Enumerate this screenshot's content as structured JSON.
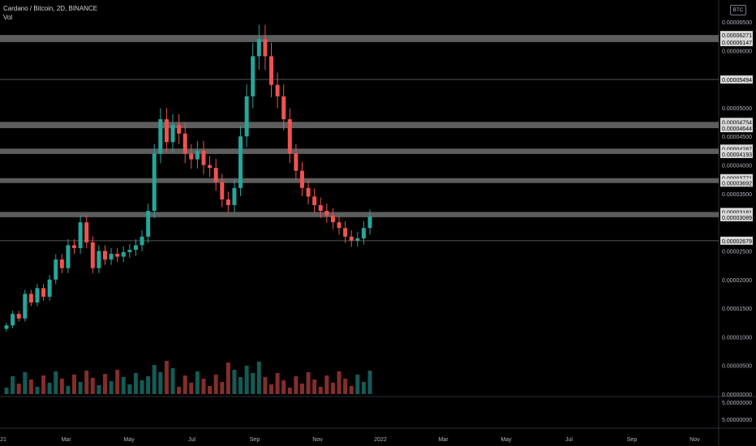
{
  "header": {
    "symbol": "Cardano / Bitcoin, 2D, BINANCE",
    "volume_label": "Vol",
    "currency_badge": "BTC"
  },
  "colors": {
    "background": "#000000",
    "up": "#26a69a",
    "down": "#ef5350",
    "zone": "#6d6d6d",
    "axis_text": "#b2b5be",
    "label_bg": "#d9d9d9"
  },
  "chart_data": {
    "type": "candlestick",
    "price_axis": {
      "ticks": [
        "0.00006500",
        "0.00006000",
        "0.00005000",
        "0.00004500",
        "0.00004000",
        "0.00003500",
        "0.00002500",
        "0.00002000",
        "0.00001500",
        "0.00001000",
        "0.00000500",
        "0.00000000"
      ],
      "range": [
        0,
        6.5e-05
      ]
    },
    "volume_axis_ticks": [
      "5.00000000",
      "5.00000000"
    ],
    "x_axis_ticks": [
      "21",
      "Mar",
      "May",
      "Jul",
      "Sep",
      "Nov",
      "2022",
      "Mar",
      "May",
      "Jul",
      "Sep",
      "Nov"
    ],
    "zones": [
      {
        "top": 6.271e-05,
        "bottom": 6.147e-05
      },
      {
        "top": 4.754e-05,
        "bottom": 4.644e-05
      },
      {
        "top": 4.287e-05,
        "bottom": 4.193e-05
      },
      {
        "top": 3.771e-05,
        "bottom": 3.692e-05
      },
      {
        "top": 3.181e-05,
        "bottom": 3.089e-05
      }
    ],
    "levels": [
      5.494e-05,
      2.679e-05
    ],
    "price_labels": [
      "0.00006271",
      "0.00006147",
      "0.00005494",
      "0.00004754",
      "0.00004644",
      "0.00004287",
      "0.00004193",
      "0.00003771",
      "0.00003692",
      "0.00003181",
      "0.00003089",
      "0.00002679"
    ],
    "series_close": [
      1.2e-05,
      1.4e-05,
      1.32e-05,
      1.75e-05,
      1.6e-05,
      1.85e-05,
      1.7e-05,
      2e-05,
      2.35e-05,
      2.2e-05,
      2.6e-05,
      2.55e-05,
      3e-05,
      2.65e-05,
      2.2e-05,
      2.5e-05,
      2.35e-05,
      2.45e-05,
      2.4e-05,
      2.48e-05,
      2.52e-05,
      2.6e-05,
      2.75e-05,
      3.2e-05,
      4.2e-05,
      4.8e-05,
      4.4e-05,
      4.7e-05,
      4.55e-05,
      4.2e-05,
      4.1e-05,
      4.25e-05,
      4e-05,
      3.95e-05,
      3.7e-05,
      3.4e-05,
      3.3e-05,
      3.6e-05,
      4.5e-05,
      5.2e-05,
      5.9e-05,
      6.2e-05,
      5.9e-05,
      5.4e-05,
      5.2e-05,
      4.8e-05,
      4.2e-05,
      3.9e-05,
      3.6e-05,
      3.45e-05,
      3.3e-05,
      3.2e-05,
      3.12e-05,
      3e-05,
      2.9e-05,
      2.75e-05,
      2.68e-05,
      2.72e-05,
      2.9e-05,
      3.1e-05
    ]
  }
}
